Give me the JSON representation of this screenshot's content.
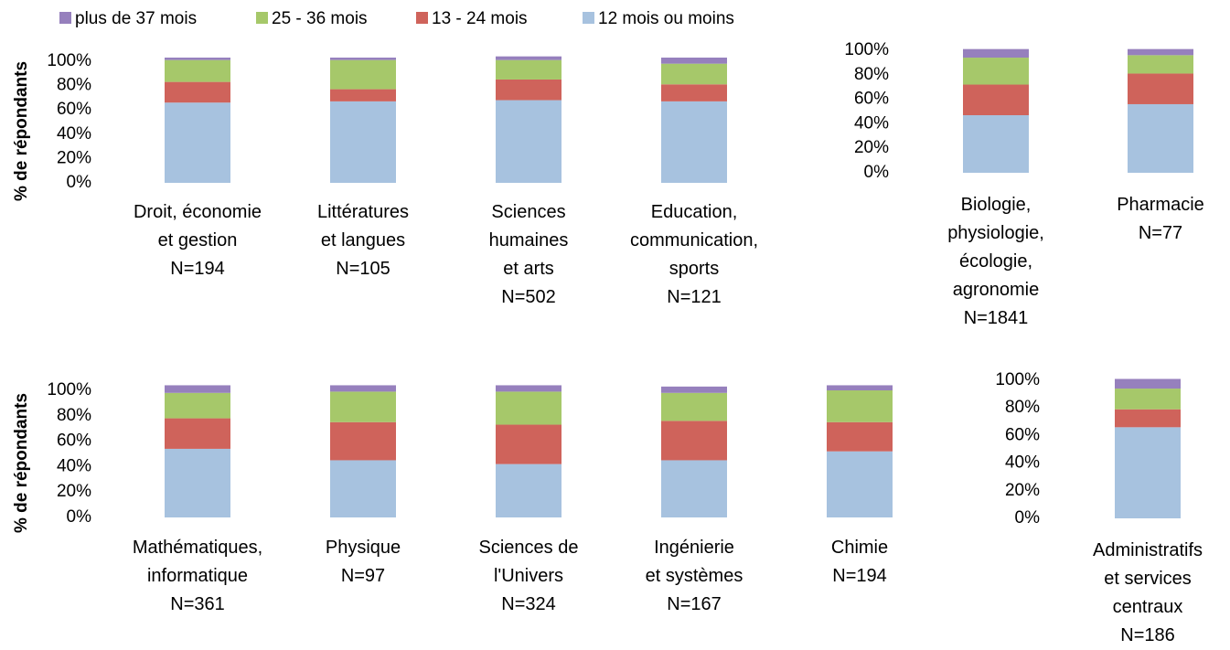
{
  "chart_data": [
    {
      "type": "bar",
      "stacked": true,
      "y_label": "% de répondants",
      "categories": [
        "Droit, économie\net gestion\nN=194",
        "Littératures\net langues\nN=105",
        "Sciences\nhumaines\net arts\nN=502",
        "Education,\ncommunication,\nsports\nN=121"
      ],
      "series": [
        {
          "name": "12 mois ou moins",
          "color": "#a7c2df",
          "values": [
            66,
            67,
            68,
            67
          ]
        },
        {
          "name": "13 - 24 mois",
          "color": "#cf635b",
          "values": [
            17,
            10,
            17,
            14
          ]
        },
        {
          "name": "25 - 36 mois",
          "color": "#a6c86a",
          "values": [
            18,
            24,
            16,
            17
          ]
        },
        {
          "name": "plus de 37 mois",
          "color": "#9680bd",
          "values": [
            2,
            2,
            3,
            5
          ]
        }
      ],
      "ylim": [
        0,
        100
      ],
      "yticks": [
        {
          "value": 0,
          "label": "0%"
        },
        {
          "value": 20,
          "label": "20%"
        },
        {
          "value": 40,
          "label": "40%"
        },
        {
          "value": 60,
          "label": "60%"
        },
        {
          "value": 80,
          "label": "80%"
        },
        {
          "value": 100,
          "label": "100%"
        }
      ]
    },
    {
      "type": "bar",
      "stacked": true,
      "categories": [
        "Biologie,\nphysiologie,\nécologie,\nagronomie\nN=1841",
        "Pharmacie\nN=77"
      ],
      "series": [
        {
          "color": "#a7c2df",
          "values": [
            47,
            56
          ]
        },
        {
          "color": "#cf635b",
          "values": [
            25,
            25
          ]
        },
        {
          "color": "#a6c86a",
          "values": [
            22,
            15
          ]
        },
        {
          "color": "#9680bd",
          "values": [
            7,
            5
          ]
        }
      ],
      "ylim": [
        0,
        100
      ],
      "yticks": [
        {
          "value": 0,
          "label": "0%"
        },
        {
          "value": 20,
          "label": "20%"
        },
        {
          "value": 40,
          "label": "40%"
        },
        {
          "value": 60,
          "label": "60%"
        },
        {
          "value": 80,
          "label": "80%"
        },
        {
          "value": 100,
          "label": "100%"
        }
      ]
    },
    {
      "type": "bar",
      "stacked": true,
      "y_label": "% de répondants",
      "categories": [
        "Mathématiques,\ninformatique\nN=361",
        "Physique\nN=97",
        "Sciences de\nl'Univers\nN=324",
        "Ingénierie\net systèmes\nN=167",
        "Chimie\nN=194"
      ],
      "series": [
        {
          "color": "#a7c2df",
          "values": [
            54,
            45,
            42,
            45,
            52
          ]
        },
        {
          "color": "#cf635b",
          "values": [
            24,
            30,
            31,
            31,
            23
          ]
        },
        {
          "color": "#a6c86a",
          "values": [
            20,
            24,
            26,
            22,
            25
          ]
        },
        {
          "color": "#9680bd",
          "values": [
            6,
            5,
            5,
            5,
            4
          ]
        }
      ],
      "ylim": [
        0,
        100
      ],
      "yticks": [
        {
          "value": 0,
          "label": "0%"
        },
        {
          "value": 20,
          "label": "20%"
        },
        {
          "value": 40,
          "label": "40%"
        },
        {
          "value": 60,
          "label": "60%"
        },
        {
          "value": 80,
          "label": "80%"
        },
        {
          "value": 100,
          "label": "100%"
        }
      ]
    },
    {
      "type": "bar",
      "stacked": true,
      "categories": [
        "Administratifs\net services\ncentraux\nN=186"
      ],
      "series": [
        {
          "color": "#a7c2df",
          "values": [
            66
          ]
        },
        {
          "color": "#cf635b",
          "values": [
            13
          ]
        },
        {
          "color": "#a6c86a",
          "values": [
            15
          ]
        },
        {
          "color": "#9680bd",
          "values": [
            7
          ]
        }
      ],
      "ylim": [
        0,
        100
      ],
      "yticks": [
        {
          "value": 0,
          "label": "0%"
        },
        {
          "value": 20,
          "label": "20%"
        },
        {
          "value": 40,
          "label": "40%"
        },
        {
          "value": 60,
          "label": "60%"
        },
        {
          "value": 80,
          "label": "80%"
        },
        {
          "value": 100,
          "label": "100%"
        }
      ]
    }
  ]
}
